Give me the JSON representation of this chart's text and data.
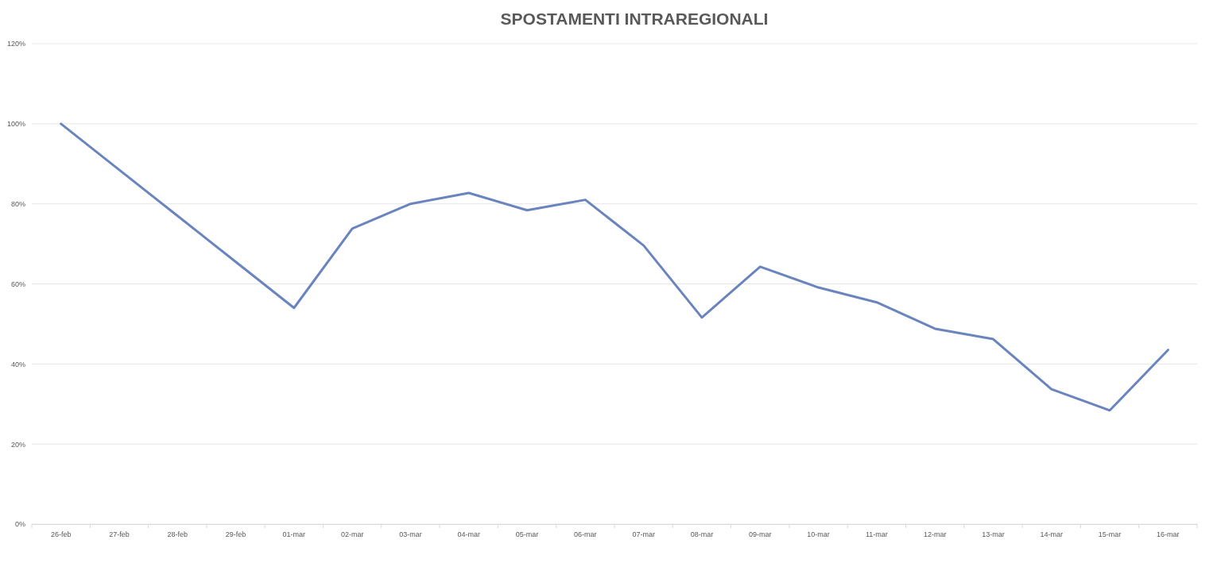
{
  "chart_data": {
    "type": "line",
    "title": "SPOSTAMENTI INTRAREGIONALI",
    "categories": [
      "26-feb",
      "27-feb",
      "28-feb",
      "29-feb",
      "01-mar",
      "02-mar",
      "03-mar",
      "04-mar",
      "05-mar",
      "06-mar",
      "07-mar",
      "08-mar",
      "09-mar",
      "10-mar",
      "11-mar",
      "12-mar",
      "13-mar",
      "14-mar",
      "15-mar",
      "16-mar"
    ],
    "series": [
      {
        "color": "#6a84bd",
        "values": [
          100,
          88.5,
          77,
          65.5,
          54,
          73.8,
          80,
          82.7,
          78.4,
          81,
          69.6,
          51.6,
          64.3,
          59.1,
          55.4,
          48.8,
          46.2,
          33.7,
          28.4,
          43.5
        ]
      }
    ],
    "ylim": [
      0,
      120
    ],
    "yticks": [
      {
        "value": 0,
        "label": "0%"
      },
      {
        "value": 20,
        "label": "20%"
      },
      {
        "value": 40,
        "label": "40%"
      },
      {
        "value": 60,
        "label": "60%"
      },
      {
        "value": 80,
        "label": "80%"
      },
      {
        "value": 100,
        "label": "100%"
      },
      {
        "value": 120,
        "label": "120%"
      }
    ],
    "grid": "y",
    "marker": "none",
    "line_style": "solid",
    "legend": false
  }
}
